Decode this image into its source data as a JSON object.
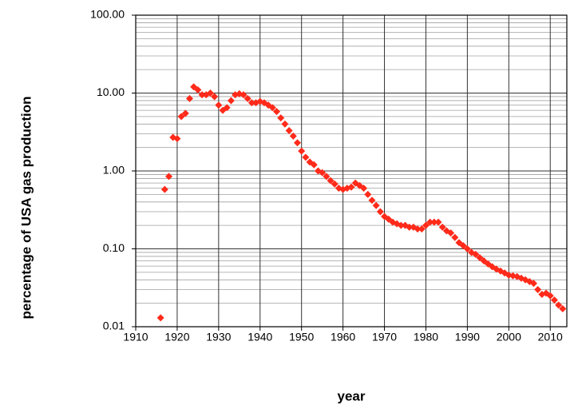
{
  "chart_data": {
    "type": "scatter",
    "x_label": "year",
    "y_label": "percentage of USA gas production",
    "log_y": true,
    "grid": true,
    "minor_grid": true,
    "marker": "diamond",
    "xlim": [
      1910,
      2014
    ],
    "xticks": [
      1910,
      1920,
      1930,
      1940,
      1950,
      1960,
      1970,
      1980,
      1990,
      2000,
      2010
    ],
    "ylim": [
      0.01,
      100
    ],
    "yticks": [
      {
        "value": 0.01,
        "label": "0.01"
      },
      {
        "value": 0.1,
        "label": "0.10"
      },
      {
        "value": 1,
        "label": "1.00"
      },
      {
        "value": 10,
        "label": "10.00"
      },
      {
        "value": 100,
        "label": "100.00"
      }
    ],
    "series": [
      {
        "color": "#ff2a1a",
        "x": [
          1916,
          1917,
          1918,
          1919,
          1920,
          1921,
          1922,
          1923,
          1924,
          1925,
          1926,
          1927,
          1928,
          1929,
          1930,
          1931,
          1932,
          1933,
          1934,
          1935,
          1936,
          1937,
          1938,
          1939,
          1940,
          1941,
          1942,
          1943,
          1944,
          1945,
          1946,
          1947,
          1948,
          1949,
          1950,
          1951,
          1952,
          1953,
          1954,
          1955,
          1956,
          1957,
          1958,
          1959,
          1960,
          1961,
          1962,
          1963,
          1964,
          1965,
          1966,
          1967,
          1968,
          1969,
          1970,
          1971,
          1972,
          1973,
          1974,
          1975,
          1976,
          1977,
          1978,
          1979,
          1980,
          1981,
          1982,
          1983,
          1984,
          1985,
          1986,
          1987,
          1988,
          1989,
          1990,
          1991,
          1992,
          1993,
          1994,
          1995,
          1996,
          1997,
          1998,
          1999,
          2000,
          2001,
          2002,
          2003,
          2004,
          2005,
          2006,
          2007,
          2008,
          2009,
          2010,
          2011,
          2012,
          2013
        ],
        "values": [
          0.013,
          0.58,
          0.85,
          2.7,
          2.6,
          5.0,
          5.5,
          8.5,
          12,
          11,
          9.5,
          9.5,
          10,
          9,
          7,
          6,
          6.5,
          8,
          9.5,
          9.8,
          9.5,
          8.5,
          7.5,
          7.5,
          7.8,
          7.5,
          7,
          6.5,
          5.8,
          4.8,
          4,
          3.3,
          2.8,
          2.3,
          1.8,
          1.5,
          1.3,
          1.2,
          1.0,
          0.95,
          0.85,
          0.75,
          0.68,
          0.6,
          0.58,
          0.6,
          0.62,
          0.7,
          0.65,
          0.6,
          0.5,
          0.42,
          0.36,
          0.3,
          0.26,
          0.24,
          0.22,
          0.21,
          0.2,
          0.2,
          0.19,
          0.19,
          0.18,
          0.18,
          0.2,
          0.22,
          0.22,
          0.22,
          0.19,
          0.17,
          0.16,
          0.14,
          0.12,
          0.11,
          0.1,
          0.09,
          0.085,
          0.077,
          0.07,
          0.064,
          0.059,
          0.055,
          0.052,
          0.049,
          0.046,
          0.045,
          0.044,
          0.042,
          0.04,
          0.038,
          0.036,
          0.03,
          0.026,
          0.027,
          0.025,
          0.022,
          0.019,
          0.017
        ]
      }
    ]
  }
}
